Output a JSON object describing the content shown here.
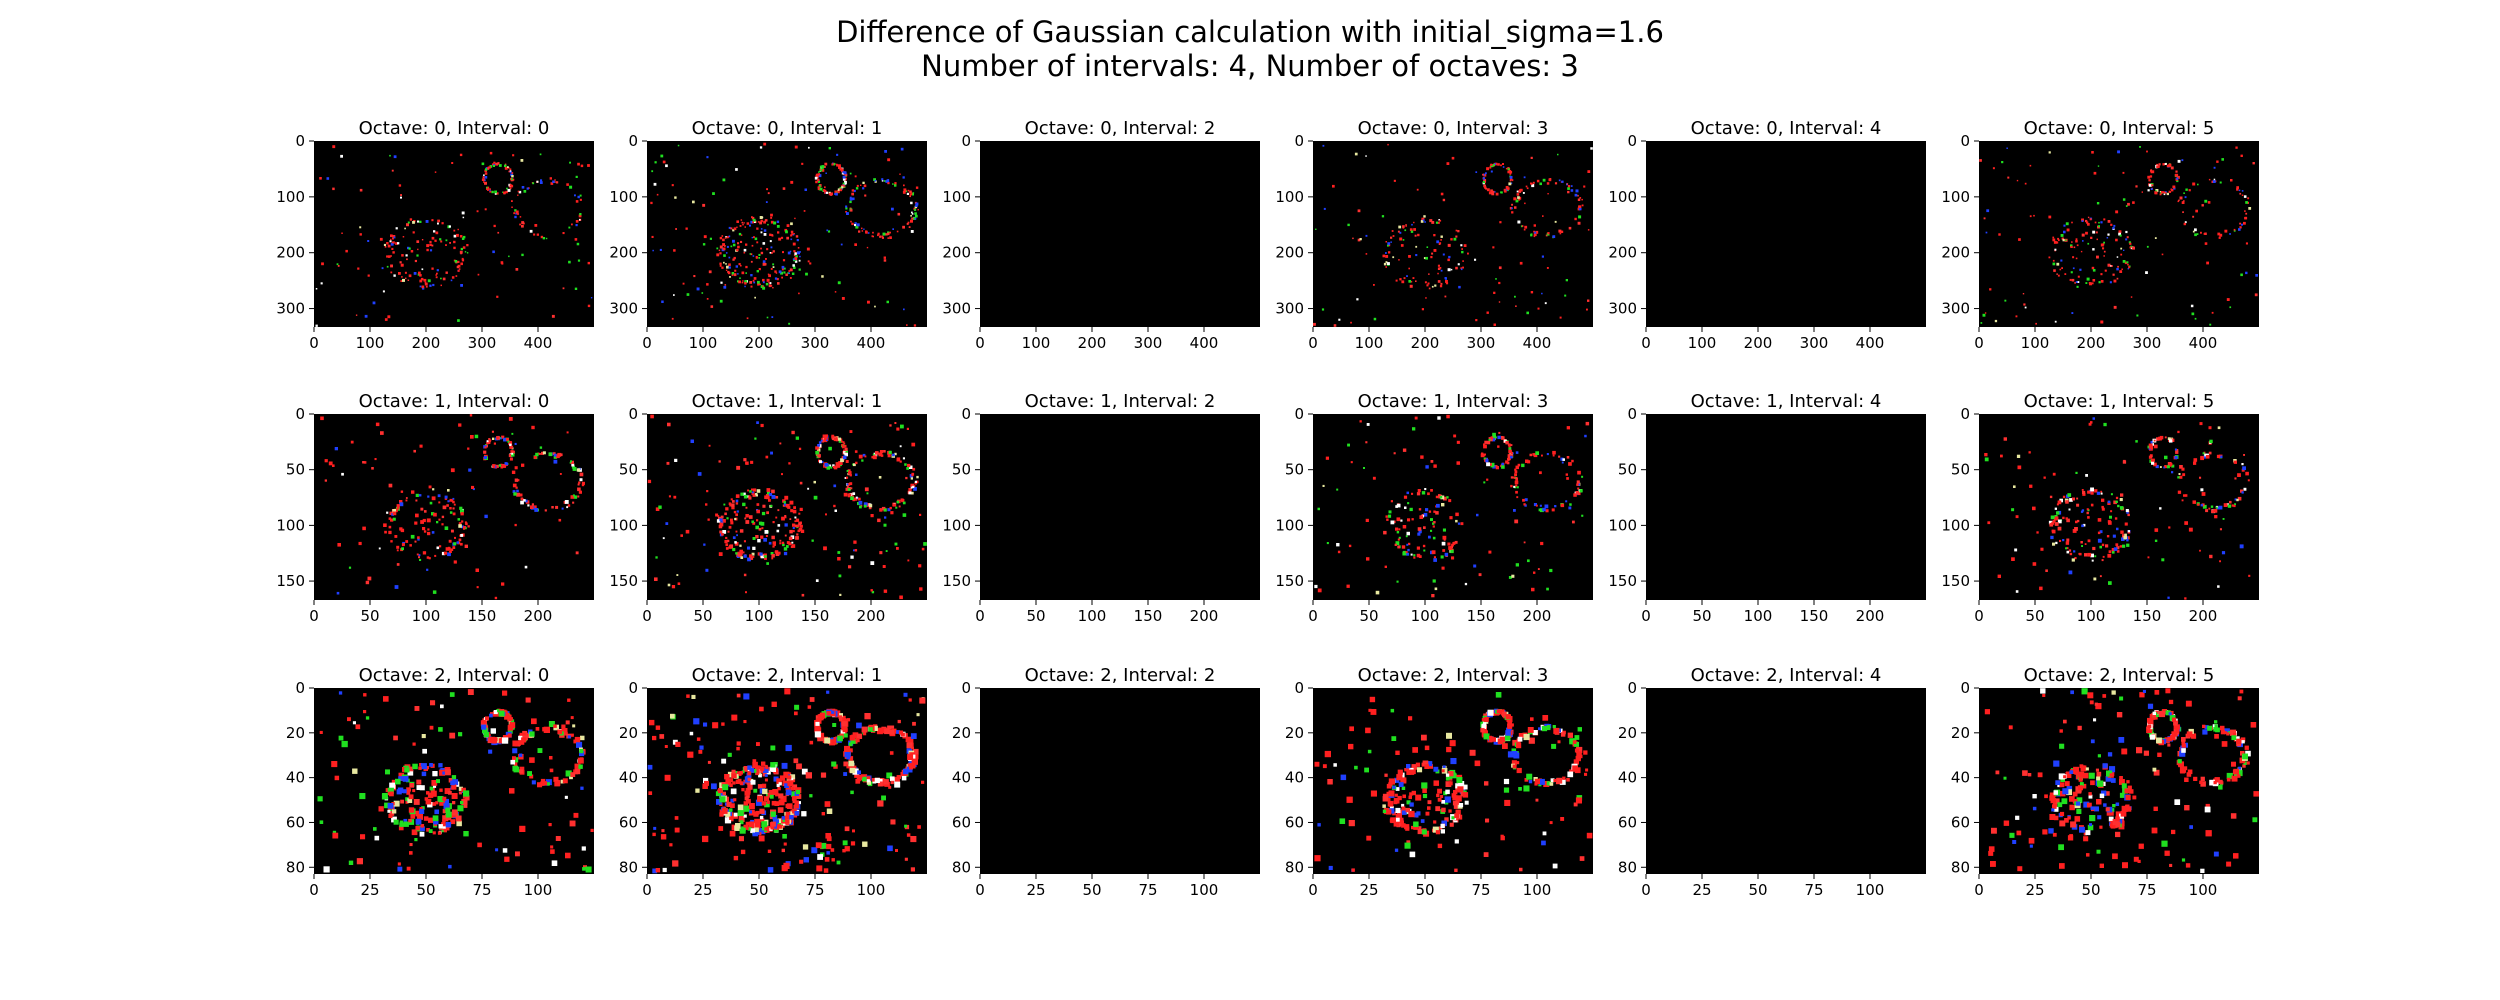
{
  "title_lines": [
    "Difference of Gaussian calculation with initial_sigma=1.6",
    "Number of intervals: 4, Number of octaves: 3"
  ],
  "chart_data": {
    "type": "image-grid",
    "title": "Difference of Gaussian calculation with initial_sigma=1.6",
    "subtitle": "Number of intervals: 4, Number of octaves: 3",
    "initial_sigma": 1.6,
    "num_intervals": 4,
    "num_octaves": 3,
    "intervals_shown": [
      0,
      1,
      2,
      3,
      4,
      5
    ],
    "octaves": [
      {
        "octave": 0,
        "width": 500,
        "height": 333,
        "xticks": [
          0,
          100,
          200,
          300,
          400
        ],
        "yticks": [
          0,
          100,
          200,
          300
        ],
        "point_size": 2
      },
      {
        "octave": 1,
        "width": 250,
        "height": 167,
        "xticks": [
          0,
          50,
          100,
          150,
          200
        ],
        "yticks": [
          0,
          50,
          100,
          150
        ],
        "point_size": 2.6
      },
      {
        "octave": 2,
        "width": 125,
        "height": 83,
        "xticks": [
          0,
          25,
          50,
          75,
          100
        ],
        "yticks": [
          0,
          20,
          40,
          60,
          80
        ],
        "point_size": 4.2
      }
    ],
    "panels": [
      {
        "octave": 0,
        "interval": 0,
        "title": "Octave: 0, Interval: 0",
        "blank": false
      },
      {
        "octave": 0,
        "interval": 1,
        "title": "Octave: 0, Interval: 1",
        "blank": false
      },
      {
        "octave": 0,
        "interval": 2,
        "title": "Octave: 0, Interval: 2",
        "blank": true
      },
      {
        "octave": 0,
        "interval": 3,
        "title": "Octave: 0, Interval: 3",
        "blank": false
      },
      {
        "octave": 0,
        "interval": 4,
        "title": "Octave: 0, Interval: 4",
        "blank": true
      },
      {
        "octave": 0,
        "interval": 5,
        "title": "Octave: 0, Interval: 5",
        "blank": false
      },
      {
        "octave": 1,
        "interval": 0,
        "title": "Octave: 1, Interval: 0",
        "blank": false
      },
      {
        "octave": 1,
        "interval": 1,
        "title": "Octave: 1, Interval: 1",
        "blank": false
      },
      {
        "octave": 1,
        "interval": 2,
        "title": "Octave: 1, Interval: 2",
        "blank": true
      },
      {
        "octave": 1,
        "interval": 3,
        "title": "Octave: 1, Interval: 3",
        "blank": false
      },
      {
        "octave": 1,
        "interval": 4,
        "title": "Octave: 1, Interval: 4",
        "blank": true
      },
      {
        "octave": 1,
        "interval": 5,
        "title": "Octave: 1, Interval: 5",
        "blank": false
      },
      {
        "octave": 2,
        "interval": 0,
        "title": "Octave: 2, Interval: 0",
        "blank": false
      },
      {
        "octave": 2,
        "interval": 1,
        "title": "Octave: 2, Interval: 1",
        "blank": false
      },
      {
        "octave": 2,
        "interval": 2,
        "title": "Octave: 2, Interval: 2",
        "blank": true
      },
      {
        "octave": 2,
        "interval": 3,
        "title": "Octave: 2, Interval: 3",
        "blank": false
      },
      {
        "octave": 2,
        "interval": 4,
        "title": "Octave: 2, Interval: 4",
        "blank": true
      },
      {
        "octave": 2,
        "interval": 5,
        "title": "Octave: 2, Interval: 5",
        "blank": false
      }
    ],
    "image_background": "#000000",
    "point_colors": [
      "#ff2020",
      "#ff3030",
      "#20e020",
      "#2040ff",
      "#ffffff",
      "#e8e8a0"
    ]
  },
  "colors": {
    "background": "#ffffff",
    "text": "#000000",
    "image": "#000000"
  }
}
